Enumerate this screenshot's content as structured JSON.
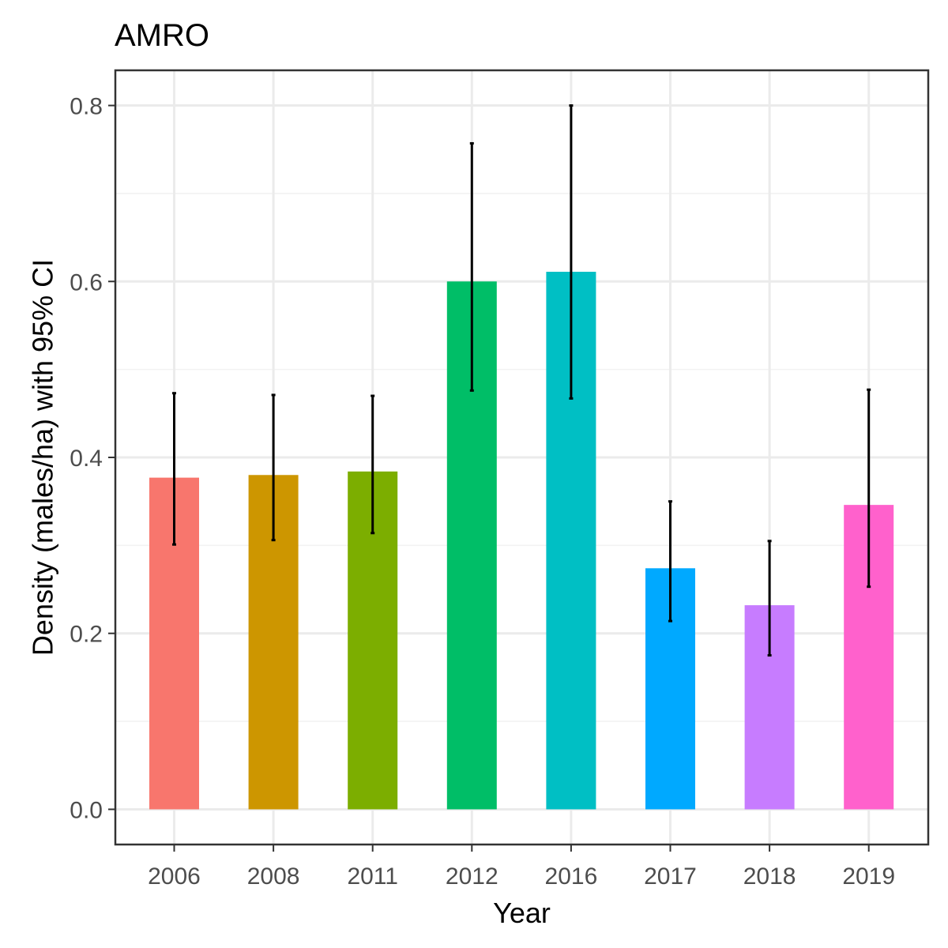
{
  "chart_data": {
    "type": "bar",
    "title": "AMRO",
    "xlabel": "Year",
    "ylabel": "Density (males/ha) with 95% CI",
    "categories": [
      "2006",
      "2008",
      "2011",
      "2012",
      "2016",
      "2017",
      "2018",
      "2019"
    ],
    "values": [
      0.377,
      0.38,
      0.384,
      0.6,
      0.611,
      0.274,
      0.232,
      0.346
    ],
    "ci_lower": [
      0.301,
      0.306,
      0.314,
      0.476,
      0.467,
      0.214,
      0.175,
      0.253
    ],
    "ci_upper": [
      0.473,
      0.471,
      0.47,
      0.757,
      0.8,
      0.35,
      0.305,
      0.477
    ],
    "colors": [
      "#F8766D",
      "#CD9600",
      "#7CAE00",
      "#00BE67",
      "#00BFC4",
      "#00A9FF",
      "#C77CFF",
      "#FF61CC"
    ],
    "ylim": [
      -0.04,
      0.84
    ],
    "yticks": [
      0.0,
      0.2,
      0.4,
      0.6,
      0.8
    ],
    "ytick_labels": [
      "0.0",
      "0.2",
      "0.4",
      "0.6",
      "0.8"
    ],
    "grid": true,
    "legend": "none"
  }
}
